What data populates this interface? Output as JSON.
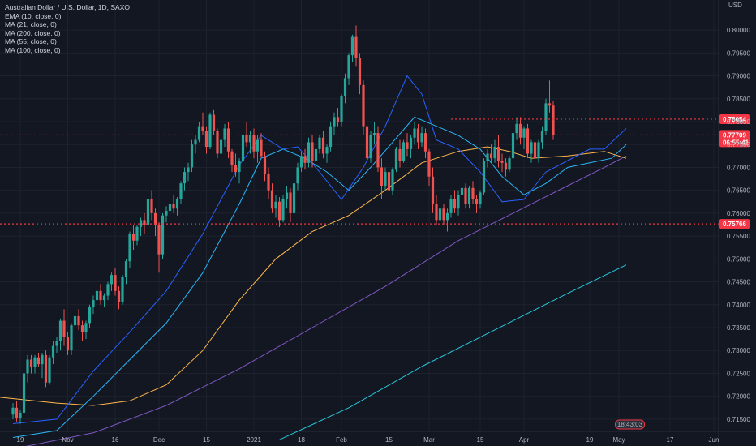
{
  "chart_data": {
    "type": "candlestick",
    "title": "Australian Dollar / U.S. Dollar, 1D, SAXO",
    "currency": "USD",
    "indicators": [
      "EMA (10, close, 0)",
      "MA (21, close, 0)",
      "MA (200, close, 0)",
      "MA (55, close, 0)",
      "MA (100, close, 0)"
    ],
    "ylim": [
      0.7125,
      0.8025
    ],
    "y_ticks": [
      "0.80000",
      "0.79500",
      "0.79000",
      "0.78500",
      "0.78000",
      "0.77500",
      "0.77000",
      "0.76500",
      "0.76000",
      "0.75500",
      "0.75000",
      "0.74500",
      "0.74000",
      "0.73500",
      "0.73000",
      "0.72500",
      "0.72000",
      "0.71500"
    ],
    "x_ticks": [
      "19",
      "Nov",
      "16",
      "Dec",
      "15",
      "2021",
      "18",
      "Feb",
      "15",
      "Mar",
      "15",
      "Apr",
      "19",
      "May",
      "17",
      "Jun"
    ],
    "x_tick_bars": [
      -10,
      3,
      16,
      28,
      41,
      54,
      67,
      78,
      91,
      102,
      116,
      128,
      146,
      154,
      168,
      180
    ],
    "horizontal_levels": [
      {
        "value": 0.78054,
        "label": "0.78054",
        "color": "#f23645",
        "from_bar": 108
      },
      {
        "value": 0.75766,
        "label": "0.75766",
        "color": "#f23645",
        "from_bar": -999
      }
    ],
    "last_price": {
      "value": 0.77709,
      "label": "0.77709",
      "countdown": "06:55:41",
      "color": "#f23645"
    },
    "time_badge": "18:43:03",
    "colors": {
      "up": "#26a69a",
      "down": "#ef5350",
      "ema10": "#2962ff",
      "ma21": "#29b6f6",
      "ma55": "#ffb74d",
      "ma100": "#7e57c2",
      "ma200": "#26c6da"
    },
    "candles": [
      [
        0.716,
        0.7185,
        0.715,
        0.7175
      ],
      [
        0.7175,
        0.719,
        0.7145,
        0.7152
      ],
      [
        0.7152,
        0.717,
        0.714,
        0.7164
      ],
      [
        0.7164,
        0.726,
        0.716,
        0.725
      ],
      [
        0.725,
        0.729,
        0.723,
        0.728
      ],
      [
        0.728,
        0.729,
        0.725,
        0.7265
      ],
      [
        0.7265,
        0.729,
        0.725,
        0.7285
      ],
      [
        0.7285,
        0.7295,
        0.7265,
        0.727
      ],
      [
        0.727,
        0.7295,
        0.724,
        0.729
      ],
      [
        0.729,
        0.73,
        0.722,
        0.723
      ],
      [
        0.723,
        0.729,
        0.7225,
        0.7285
      ],
      [
        0.7285,
        0.732,
        0.727,
        0.731
      ],
      [
        0.731,
        0.733,
        0.7295,
        0.732
      ],
      [
        0.732,
        0.737,
        0.73,
        0.7365
      ],
      [
        0.7365,
        0.739,
        0.731,
        0.733
      ],
      [
        0.733,
        0.734,
        0.729,
        0.73
      ],
      [
        0.73,
        0.736,
        0.729,
        0.7355
      ],
      [
        0.7355,
        0.738,
        0.734,
        0.7375
      ],
      [
        0.7375,
        0.739,
        0.7345,
        0.7355
      ],
      [
        0.7355,
        0.7365,
        0.732,
        0.734
      ],
      [
        0.734,
        0.7365,
        0.7325,
        0.736
      ],
      [
        0.736,
        0.74,
        0.735,
        0.7395
      ],
      [
        0.7395,
        0.742,
        0.738,
        0.741
      ],
      [
        0.741,
        0.744,
        0.7395,
        0.743
      ],
      [
        0.743,
        0.7445,
        0.74,
        0.741
      ],
      [
        0.741,
        0.7425,
        0.7395,
        0.742
      ],
      [
        0.742,
        0.745,
        0.741,
        0.7445
      ],
      [
        0.7445,
        0.747,
        0.743,
        0.7465
      ],
      [
        0.7465,
        0.748,
        0.742,
        0.743
      ],
      [
        0.743,
        0.744,
        0.739,
        0.7405
      ],
      [
        0.7405,
        0.7465,
        0.74,
        0.746
      ],
      [
        0.746,
        0.75,
        0.7445,
        0.7495
      ],
      [
        0.7495,
        0.756,
        0.748,
        0.7555
      ],
      [
        0.7555,
        0.7575,
        0.752,
        0.754
      ],
      [
        0.754,
        0.7575,
        0.753,
        0.757
      ],
      [
        0.757,
        0.759,
        0.755,
        0.7585
      ],
      [
        0.7585,
        0.76,
        0.7555,
        0.7575
      ],
      [
        0.7575,
        0.764,
        0.757,
        0.763
      ],
      [
        0.763,
        0.765,
        0.7585,
        0.76
      ],
      [
        0.76,
        0.761,
        0.755,
        0.7575
      ],
      [
        0.7575,
        0.758,
        0.747,
        0.751
      ],
      [
        0.751,
        0.76,
        0.75,
        0.7595
      ],
      [
        0.7595,
        0.7615,
        0.758,
        0.7605
      ],
      [
        0.7605,
        0.7625,
        0.759,
        0.762
      ],
      [
        0.762,
        0.764,
        0.76,
        0.761
      ],
      [
        0.761,
        0.7635,
        0.7595,
        0.763
      ],
      [
        0.763,
        0.767,
        0.762,
        0.7665
      ],
      [
        0.7665,
        0.77,
        0.765,
        0.769
      ],
      [
        0.769,
        0.771,
        0.767,
        0.77
      ],
      [
        0.77,
        0.776,
        0.769,
        0.775
      ],
      [
        0.775,
        0.777,
        0.773,
        0.776
      ],
      [
        0.776,
        0.78,
        0.7755,
        0.779
      ],
      [
        0.779,
        0.782,
        0.777,
        0.778
      ],
      [
        0.778,
        0.779,
        0.773,
        0.7745
      ],
      [
        0.7745,
        0.782,
        0.774,
        0.7815
      ],
      [
        0.7815,
        0.7825,
        0.777,
        0.778
      ],
      [
        0.778,
        0.7785,
        0.772,
        0.773
      ],
      [
        0.773,
        0.777,
        0.772,
        0.776
      ],
      [
        0.776,
        0.7795,
        0.7745,
        0.7785
      ],
      [
        0.7785,
        0.78,
        0.772,
        0.7735
      ],
      [
        0.7735,
        0.774,
        0.769,
        0.7705
      ],
      [
        0.7705,
        0.773,
        0.768,
        0.769
      ],
      [
        0.769,
        0.772,
        0.7665,
        0.7715
      ],
      [
        0.7715,
        0.778,
        0.77,
        0.777
      ],
      [
        0.777,
        0.78,
        0.7745,
        0.7755
      ],
      [
        0.7755,
        0.778,
        0.773,
        0.777
      ],
      [
        0.777,
        0.7785,
        0.772,
        0.7735
      ],
      [
        0.7735,
        0.777,
        0.771,
        0.776
      ],
      [
        0.776,
        0.7775,
        0.772,
        0.7725
      ],
      [
        0.7725,
        0.7735,
        0.767,
        0.7685
      ],
      [
        0.7685,
        0.77,
        0.763,
        0.765
      ],
      [
        0.765,
        0.7665,
        0.76,
        0.761
      ],
      [
        0.761,
        0.764,
        0.759,
        0.7625
      ],
      [
        0.7625,
        0.7635,
        0.757,
        0.7585
      ],
      [
        0.7585,
        0.764,
        0.758,
        0.763
      ],
      [
        0.763,
        0.766,
        0.761,
        0.7645
      ],
      [
        0.7645,
        0.7655,
        0.758,
        0.76
      ],
      [
        0.76,
        0.767,
        0.759,
        0.7665
      ],
      [
        0.7665,
        0.771,
        0.765,
        0.77
      ],
      [
        0.77,
        0.7735,
        0.769,
        0.7725
      ],
      [
        0.7725,
        0.774,
        0.7695,
        0.771
      ],
      [
        0.771,
        0.7765,
        0.77,
        0.7755
      ],
      [
        0.7755,
        0.777,
        0.77,
        0.7715
      ],
      [
        0.7715,
        0.7745,
        0.77,
        0.774
      ],
      [
        0.774,
        0.777,
        0.773,
        0.7765
      ],
      [
        0.7765,
        0.778,
        0.772,
        0.773
      ],
      [
        0.773,
        0.775,
        0.771,
        0.7745
      ],
      [
        0.7745,
        0.78,
        0.7735,
        0.779
      ],
      [
        0.779,
        0.782,
        0.777,
        0.781
      ],
      [
        0.781,
        0.783,
        0.779,
        0.78
      ],
      [
        0.78,
        0.786,
        0.779,
        0.7855
      ],
      [
        0.7855,
        0.7905,
        0.784,
        0.7895
      ],
      [
        0.7895,
        0.795,
        0.788,
        0.7945
      ],
      [
        0.7945,
        0.799,
        0.793,
        0.7985
      ],
      [
        0.7985,
        0.801,
        0.792,
        0.794
      ],
      [
        0.794,
        0.795,
        0.786,
        0.788
      ],
      [
        0.788,
        0.789,
        0.777,
        0.779
      ],
      [
        0.779,
        0.78,
        0.771,
        0.772
      ],
      [
        0.772,
        0.778,
        0.771,
        0.777
      ],
      [
        0.777,
        0.78,
        0.775,
        0.7775
      ],
      [
        0.7775,
        0.779,
        0.769,
        0.77
      ],
      [
        0.77,
        0.772,
        0.763,
        0.766
      ],
      [
        0.766,
        0.77,
        0.765,
        0.769
      ],
      [
        0.769,
        0.772,
        0.764,
        0.765
      ],
      [
        0.765,
        0.77,
        0.764,
        0.7695
      ],
      [
        0.7695,
        0.7745,
        0.769,
        0.774
      ],
      [
        0.774,
        0.776,
        0.77,
        0.7715
      ],
      [
        0.7715,
        0.776,
        0.771,
        0.7755
      ],
      [
        0.7755,
        0.7775,
        0.7725,
        0.774
      ],
      [
        0.774,
        0.777,
        0.772,
        0.7765
      ],
      [
        0.7765,
        0.78,
        0.775,
        0.7785
      ],
      [
        0.7785,
        0.7795,
        0.774,
        0.7755
      ],
      [
        0.7755,
        0.779,
        0.7745,
        0.7775
      ],
      [
        0.7775,
        0.7785,
        0.772,
        0.7735
      ],
      [
        0.7735,
        0.774,
        0.766,
        0.768
      ],
      [
        0.768,
        0.77,
        0.76,
        0.762
      ],
      [
        0.762,
        0.764,
        0.7575,
        0.7585
      ],
      [
        0.7585,
        0.7625,
        0.7575,
        0.761
      ],
      [
        0.761,
        0.762,
        0.7575,
        0.7585
      ],
      [
        0.7585,
        0.761,
        0.756,
        0.76
      ],
      [
        0.76,
        0.764,
        0.759,
        0.763
      ],
      [
        0.763,
        0.765,
        0.76,
        0.761
      ],
      [
        0.761,
        0.765,
        0.7595,
        0.764
      ],
      [
        0.764,
        0.7665,
        0.762,
        0.7655
      ],
      [
        0.7655,
        0.7665,
        0.761,
        0.762
      ],
      [
        0.762,
        0.766,
        0.761,
        0.7655
      ],
      [
        0.7655,
        0.767,
        0.762,
        0.763
      ],
      [
        0.763,
        0.764,
        0.76,
        0.762
      ],
      [
        0.762,
        0.765,
        0.761,
        0.7645
      ],
      [
        0.7645,
        0.772,
        0.764,
        0.7715
      ],
      [
        0.7715,
        0.774,
        0.77,
        0.773
      ],
      [
        0.773,
        0.775,
        0.771,
        0.772
      ],
      [
        0.772,
        0.776,
        0.771,
        0.7745
      ],
      [
        0.7745,
        0.777,
        0.77,
        0.7715
      ],
      [
        0.7715,
        0.773,
        0.769,
        0.771
      ],
      [
        0.771,
        0.772,
        0.768,
        0.7695
      ],
      [
        0.7695,
        0.7725,
        0.769,
        0.772
      ],
      [
        0.772,
        0.778,
        0.7715,
        0.7775
      ],
      [
        0.7775,
        0.781,
        0.776,
        0.7795
      ],
      [
        0.7795,
        0.781,
        0.775,
        0.7765
      ],
      [
        0.7765,
        0.779,
        0.774,
        0.7785
      ],
      [
        0.7785,
        0.7795,
        0.772,
        0.773
      ],
      [
        0.773,
        0.776,
        0.771,
        0.7755
      ],
      [
        0.7755,
        0.777,
        0.77,
        0.772
      ],
      [
        0.772,
        0.776,
        0.771,
        0.7755
      ],
      [
        0.7755,
        0.779,
        0.774,
        0.778
      ],
      [
        0.778,
        0.785,
        0.777,
        0.784
      ],
      [
        0.784,
        0.789,
        0.782,
        0.7835
      ],
      [
        0.7835,
        0.7845,
        0.776,
        0.7771
      ]
    ],
    "candle_first_bar": -12,
    "ma_series": {
      "ema10": [
        [
          -12,
          0.714
        ],
        [
          0,
          0.715
        ],
        [
          10,
          0.7255
        ],
        [
          20,
          0.734
        ],
        [
          30,
          0.743
        ],
        [
          40,
          0.7555
        ],
        [
          50,
          0.7705
        ],
        [
          56,
          0.777
        ],
        [
          62,
          0.774
        ],
        [
          66,
          0.7745
        ],
        [
          72,
          0.769
        ],
        [
          78,
          0.763
        ],
        [
          84,
          0.77
        ],
        [
          90,
          0.779
        ],
        [
          96,
          0.79
        ],
        [
          100,
          0.786
        ],
        [
          104,
          0.776
        ],
        [
          110,
          0.774
        ],
        [
          116,
          0.769
        ],
        [
          122,
          0.7625
        ],
        [
          128,
          0.763
        ],
        [
          134,
          0.769
        ],
        [
          140,
          0.7715
        ],
        [
          146,
          0.774
        ],
        [
          150,
          0.774
        ],
        [
          156,
          0.7785
        ]
      ],
      "ma21": [
        [
          -12,
          0.711
        ],
        [
          0,
          0.7125
        ],
        [
          10,
          0.72
        ],
        [
          20,
          0.728
        ],
        [
          30,
          0.736
        ],
        [
          40,
          0.747
        ],
        [
          50,
          0.762
        ],
        [
          56,
          0.772
        ],
        [
          62,
          0.774
        ],
        [
          68,
          0.772
        ],
        [
          74,
          0.769
        ],
        [
          80,
          0.765
        ],
        [
          86,
          0.77
        ],
        [
          92,
          0.7755
        ],
        [
          98,
          0.781
        ],
        [
          104,
          0.779
        ],
        [
          110,
          0.777
        ],
        [
          116,
          0.774
        ],
        [
          122,
          0.768
        ],
        [
          128,
          0.764
        ],
        [
          134,
          0.7665
        ],
        [
          140,
          0.77
        ],
        [
          146,
          0.771
        ],
        [
          152,
          0.772
        ],
        [
          156,
          0.775
        ]
      ],
      "ma55": [
        [
          -18,
          0.72
        ],
        [
          0,
          0.7185
        ],
        [
          10,
          0.718
        ],
        [
          20,
          0.719
        ],
        [
          30,
          0.7225
        ],
        [
          40,
          0.73
        ],
        [
          50,
          0.741
        ],
        [
          60,
          0.75
        ],
        [
          70,
          0.756
        ],
        [
          80,
          0.7595
        ],
        [
          90,
          0.765
        ],
        [
          100,
          0.771
        ],
        [
          110,
          0.7735
        ],
        [
          118,
          0.7745
        ],
        [
          124,
          0.7735
        ],
        [
          130,
          0.772
        ],
        [
          140,
          0.7725
        ],
        [
          150,
          0.7735
        ],
        [
          156,
          0.772
        ]
      ],
      "ma100": [
        [
          -12,
          0.7085
        ],
        [
          10,
          0.712
        ],
        [
          30,
          0.718
        ],
        [
          50,
          0.726
        ],
        [
          70,
          0.735
        ],
        [
          90,
          0.744
        ],
        [
          110,
          0.754
        ],
        [
          125,
          0.76
        ],
        [
          140,
          0.766
        ],
        [
          150,
          0.77
        ],
        [
          156,
          0.7725
        ]
      ],
      "ma200": [
        [
          61,
          0.7105
        ],
        [
          80,
          0.7175
        ],
        [
          100,
          0.7265
        ],
        [
          120,
          0.7345
        ],
        [
          140,
          0.7425
        ],
        [
          156,
          0.7487
        ]
      ]
    }
  }
}
